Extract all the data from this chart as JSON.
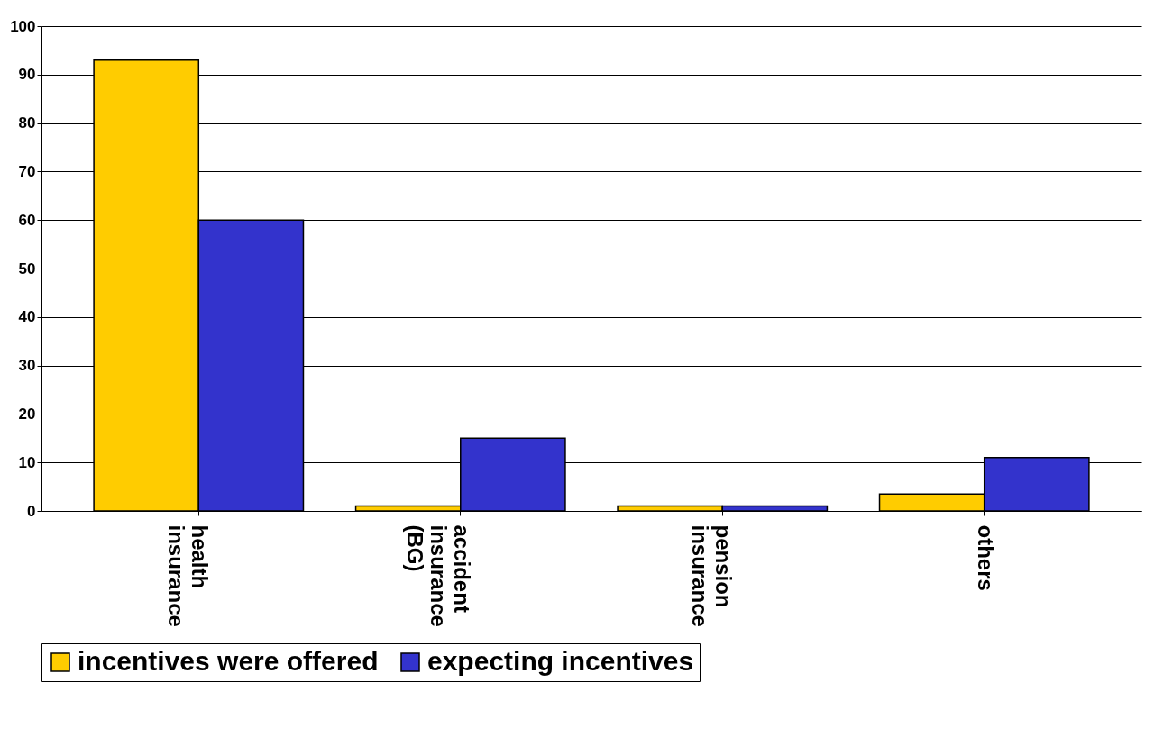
{
  "chart_data": {
    "type": "bar",
    "categories": [
      "health insurance",
      "accident insurance (BG)",
      "pension insurance",
      "others"
    ],
    "series": [
      {
        "name": "incentives were offered",
        "color": "#ffcc00",
        "values": [
          93,
          1,
          1,
          3.5
        ]
      },
      {
        "name": "expecting incentives",
        "color": "#3333cc",
        "values": [
          60,
          15,
          1,
          11
        ]
      }
    ],
    "ylim": [
      0,
      100
    ],
    "yticks": [
      0,
      10,
      20,
      30,
      40,
      50,
      60,
      70,
      80,
      90,
      100
    ],
    "grid": "y",
    "legend": "bottom"
  }
}
